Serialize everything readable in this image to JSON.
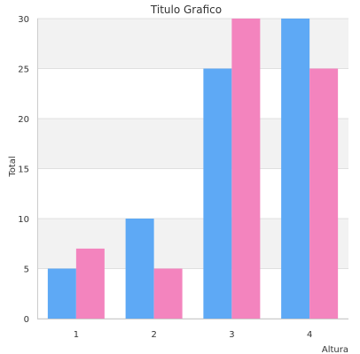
{
  "chart_data": {
    "type": "bar",
    "title": "Titulo Grafico",
    "xlabel": "Altura",
    "ylabel": "Total",
    "categories": [
      "1",
      "2",
      "3",
      "4"
    ],
    "series": [
      {
        "values": [
          5,
          10,
          25,
          30
        ],
        "color": "#5ea9f5"
      },
      {
        "values": [
          7,
          5,
          30,
          25
        ],
        "color": "#f384be"
      }
    ],
    "ylim": [
      0,
      30
    ],
    "yticks": [
      0,
      5,
      10,
      15,
      20,
      25,
      30
    ],
    "grid": true,
    "band_colors": [
      "#f2f2f2",
      "#ffffff"
    ],
    "legend": "none"
  }
}
